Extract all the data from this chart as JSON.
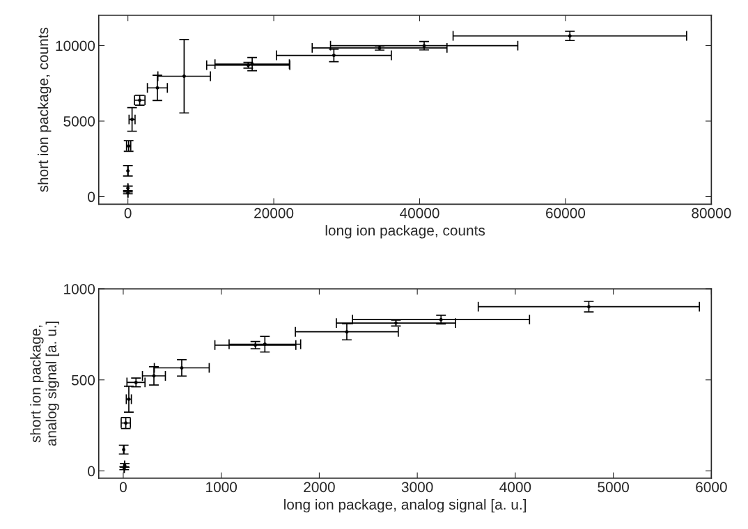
{
  "chart_data": [
    {
      "type": "scatter",
      "xlabel": "long ion package, counts",
      "ylabel": "short ion package, counts",
      "marker": "circle",
      "xlim": [
        -4000,
        80000
      ],
      "ylim": [
        -500,
        12000
      ],
      "xticks": [
        0,
        20000,
        40000,
        60000,
        80000
      ],
      "yticks": [
        0,
        5000,
        10000
      ],
      "series": [
        {
          "color": "#000000",
          "x": [
            0,
            0,
            0,
            100,
            570,
            1620,
            4040,
            7710,
            16500,
            17040,
            28240,
            34510,
            40620,
            60600
          ],
          "values": [
            250,
            550,
            1710,
            3350,
            5110,
            6380,
            7200,
            7970,
            8700,
            8770,
            9350,
            9840,
            9990,
            10640
          ],
          "errors": [
            60,
            150,
            345,
            350,
            780,
            330,
            835,
            2430,
            190,
            440,
            415,
            140,
            280,
            310
          ],
          "xerrors": [
            null,
            null,
            null,
            290,
            410,
            720,
            1370,
            3600,
            5700,
            5100,
            7880,
            9240,
            12840,
            16010
          ]
        }
      ]
    },
    {
      "type": "scatter",
      "xlabel": "long ion package, analog signal [a. u.]",
      "ylabel": "short ion package,\nanalog signal [a. u.]",
      "marker": "circle",
      "xlim": [
        -250,
        6000
      ],
      "ylim": [
        -40,
        1000
      ],
      "xticks": [
        0,
        1000,
        2000,
        3000,
        4000,
        5000,
        6000
      ],
      "yticks": [
        0,
        500,
        1000
      ],
      "series": [
        {
          "color": "#000000",
          "x": [
            10,
            15,
            5,
            26,
            57,
            130,
            313,
            597,
            1348,
            1445,
            2281,
            2782,
            3242,
            4750
          ],
          "values": [
            15,
            30,
            117,
            263,
            394,
            486,
            522,
            566,
            691,
            696,
            764,
            812,
            831,
            902
          ],
          "errors": [
            8,
            10,
            24,
            30,
            71,
            24,
            50,
            45,
            20,
            43,
            44,
            16,
            24,
            29
          ],
          "xerrors": [
            null,
            null,
            null,
            47,
            26,
            92,
            117,
            280,
            413,
            365,
            525,
            608,
            903,
            1128
          ]
        }
      ]
    }
  ]
}
